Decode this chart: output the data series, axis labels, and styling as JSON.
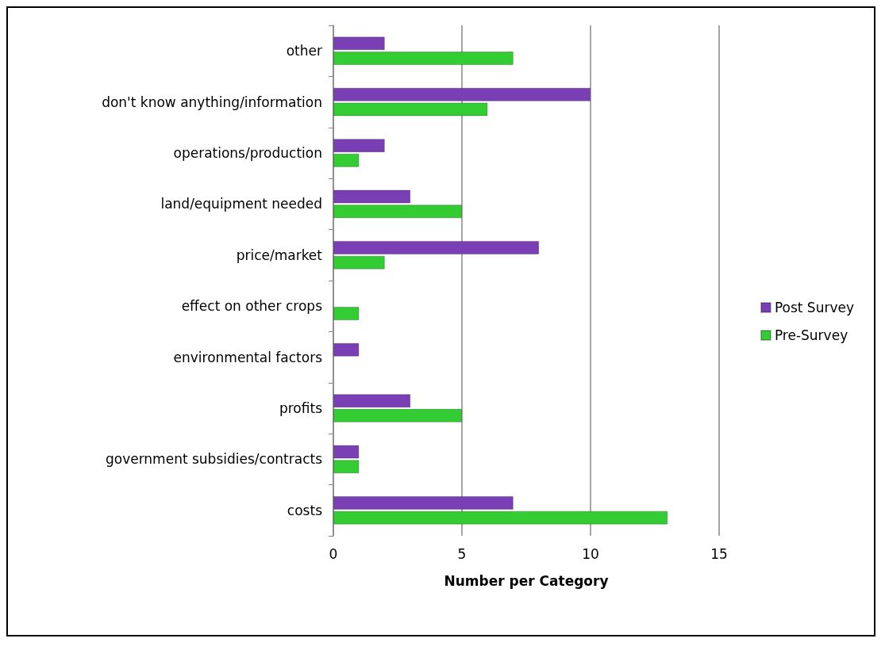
{
  "chart_data": {
    "type": "bar",
    "orientation": "horizontal",
    "xlabel": "Number per Category",
    "categories": [
      "other",
      "don't know anything/information",
      "operations/production",
      "land/equipment needed",
      "price/market",
      "effect on other crops",
      "environmental factors",
      "profits",
      "government subsidies/contracts",
      "costs"
    ],
    "series": [
      {
        "name": "Post Survey",
        "color": "#7b3fb5",
        "values": [
          2,
          10,
          2,
          3,
          8,
          null,
          1,
          3,
          1,
          7
        ]
      },
      {
        "name": "Pre-Survey",
        "color": "#33cc33",
        "values": [
          7,
          6,
          1,
          5,
          2,
          1,
          null,
          5,
          1,
          13
        ]
      }
    ],
    "xlim": [
      0,
      15
    ],
    "xticks": [
      0,
      5,
      10,
      15
    ],
    "grid": "x",
    "legend": "right"
  }
}
